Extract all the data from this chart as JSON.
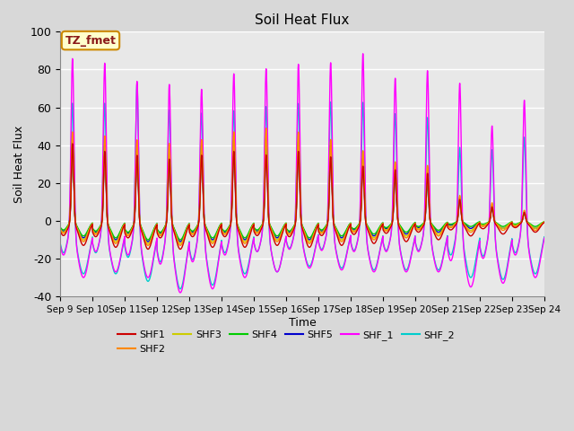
{
  "title": "Soil Heat Flux",
  "xlabel": "Time",
  "ylabel": "Soil Heat Flux",
  "ylim": [
    -40,
    100
  ],
  "yticks": [
    -40,
    -20,
    0,
    20,
    40,
    60,
    80,
    100
  ],
  "xtick_labels": [
    "Sep 9",
    "Sep 10",
    "Sep 11",
    "Sep 12",
    "Sep 13",
    "Sep 14",
    "Sep 15",
    "Sep 16",
    "Sep 17",
    "Sep 18",
    "Sep 19",
    "Sep 20",
    "Sep 21",
    "Sep 22",
    "Sep 23",
    "Sep 24"
  ],
  "series_colors": {
    "SHF1": "#cc0000",
    "SHF2": "#ff8800",
    "SHF3": "#cccc00",
    "SHF4": "#00cc00",
    "SHF5": "#0000cc",
    "SHF_1": "#ff00ff",
    "SHF_2": "#00cccc"
  },
  "annotation_text": "TZ_fmet",
  "annotation_bg": "#ffffcc",
  "annotation_border": "#cc8800",
  "background_color": "#d8d8d8",
  "plot_bg": "#e8e8e8",
  "grid_color": "#ffffff",
  "peak_heights_shf1": [
    42,
    38,
    36,
    34,
    36,
    38,
    36,
    38,
    35,
    30,
    28,
    26,
    12,
    8,
    5
  ],
  "peak_heights_shf2": [
    48,
    46,
    44,
    42,
    44,
    48,
    50,
    48,
    44,
    38,
    32,
    30,
    14,
    10,
    6
  ],
  "peak_heights_shf3": [
    45,
    43,
    43,
    42,
    43,
    48,
    49,
    47,
    43,
    37,
    31,
    29,
    13,
    9,
    5
  ],
  "peak_heights_shf4": [
    42,
    40,
    38,
    36,
    40,
    44,
    44,
    42,
    40,
    33,
    26,
    22,
    11,
    7,
    4
  ],
  "peak_heights_shf5": [
    43,
    41,
    39,
    37,
    41,
    44,
    45,
    43,
    41,
    34,
    27,
    23,
    12,
    8,
    5
  ],
  "peak_heights_shf_1": [
    92,
    89,
    80,
    80,
    77,
    84,
    86,
    88,
    89,
    94,
    81,
    85,
    80,
    57,
    70
  ],
  "peak_heights_shf_2": [
    68,
    68,
    79,
    66,
    64,
    64,
    66,
    67,
    68,
    68,
    62,
    60,
    45,
    44,
    50
  ],
  "trough_shf1": [
    -13,
    -14,
    -15,
    -15,
    -14,
    -14,
    -13,
    -14,
    -13,
    -12,
    -11,
    -10,
    -8,
    -7,
    -6
  ],
  "trough_shf2": [
    -11,
    -12,
    -13,
    -13,
    -12,
    -12,
    -11,
    -12,
    -11,
    -10,
    -9,
    -8,
    -6,
    -5,
    -5
  ],
  "trough_shf3": [
    -10,
    -11,
    -12,
    -12,
    -11,
    -11,
    -10,
    -11,
    -10,
    -9,
    -8,
    -7,
    -5,
    -4,
    -4
  ],
  "trough_shf4": [
    -8,
    -9,
    -10,
    -10,
    -9,
    -9,
    -8,
    -9,
    -8,
    -7,
    -6,
    -5,
    -3,
    -3,
    -3
  ],
  "trough_shf5": [
    -9,
    -10,
    -11,
    -11,
    -10,
    -10,
    -9,
    -10,
    -9,
    -8,
    -7,
    -6,
    -4,
    -4,
    -4
  ],
  "trough_shf_1": [
    -30,
    -27,
    -30,
    -38,
    -36,
    -30,
    -27,
    -25,
    -26,
    -27,
    -27,
    -27,
    -35,
    -33,
    -30
  ],
  "trough_shf_2": [
    -28,
    -28,
    -32,
    -36,
    -34,
    -28,
    -27,
    -24,
    -25,
    -26,
    -26,
    -26,
    -30,
    -31,
    -28
  ]
}
